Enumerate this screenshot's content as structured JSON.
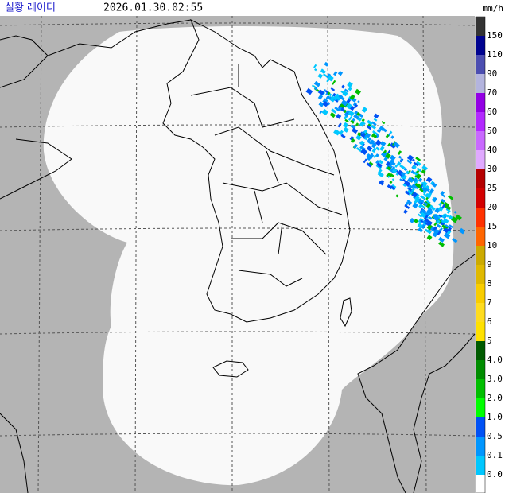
{
  "header": {
    "title": "실황 레이더",
    "timestamp": "2026.01.30.02:55",
    "unit": "mm/h"
  },
  "legend": {
    "top_color": "#333333",
    "levels": [
      {
        "label": "150",
        "color": "#000390"
      },
      {
        "label": "110",
        "color": "#4c4eb1"
      },
      {
        "label": "90",
        "color": "#b3b4de"
      },
      {
        "label": "70",
        "color": "#9300e4"
      },
      {
        "label": "60",
        "color": "#b329ff"
      },
      {
        "label": "50",
        "color": "#c969ff"
      },
      {
        "label": "40",
        "color": "#e0a9ff"
      },
      {
        "label": "30",
        "color": "#b40000"
      },
      {
        "label": "25",
        "color": "#d20000"
      },
      {
        "label": "20",
        "color": "#ff3200"
      },
      {
        "label": "15",
        "color": "#ff6600"
      },
      {
        "label": "10",
        "color": "#ccaa00"
      },
      {
        "label": "9",
        "color": "#e0b900"
      },
      {
        "label": "8",
        "color": "#f9cd00"
      },
      {
        "label": "7",
        "color": "#ffdc1f"
      },
      {
        "label": "6",
        "color": "#ffe100"
      },
      {
        "label": "5",
        "color": "#005a00"
      },
      {
        "label": "4.0",
        "color": "#008c00"
      },
      {
        "label": "3.0",
        "color": "#00be00"
      },
      {
        "label": "2.0",
        "color": "#00ff00"
      },
      {
        "label": "1.0",
        "color": "#0051f5"
      },
      {
        "label": "0.5",
        "color": "#0096ff"
      },
      {
        "label": "0.1",
        "color": "#00c7ff"
      },
      {
        "label": "0.0",
        "color": "#ffffff"
      }
    ]
  }
}
